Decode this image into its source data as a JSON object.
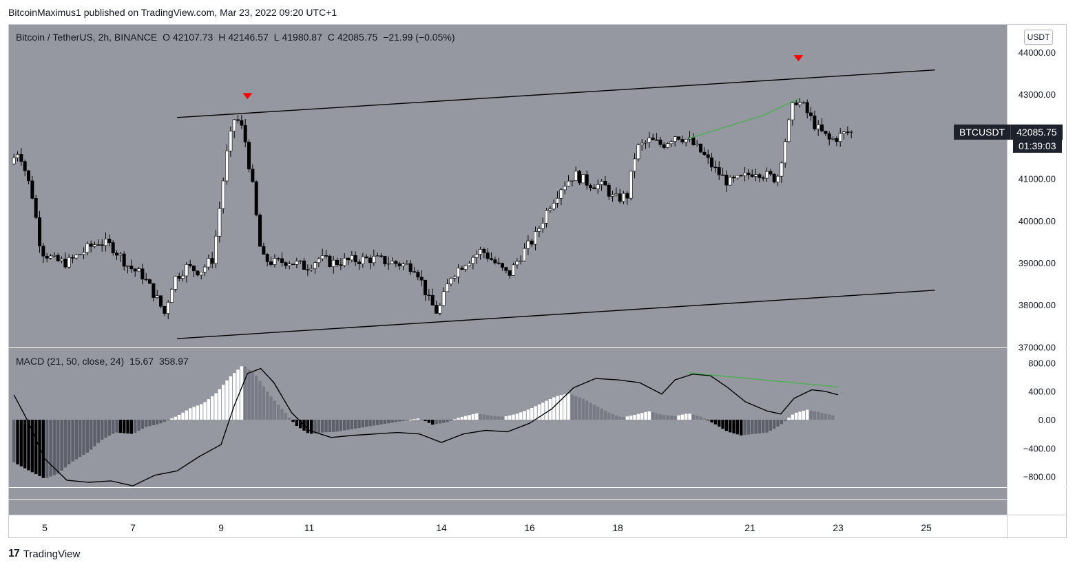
{
  "publisher": "BitcoinMaximus1 published on TradingView.com, Mar 23, 2022 09:20 UTC+1",
  "footer_brand": "TradingView",
  "legend": {
    "symbol": "Bitcoin / TetherUS, 2h, BINANCE",
    "o_label": "O",
    "o_value": "42107.73",
    "h_label": "H",
    "h_value": "42146.57",
    "l_label": "L",
    "l_value": "41980.87",
    "c_label": "C",
    "c_value": "42085.75",
    "change": "−21.99 (−0.05%)"
  },
  "macd_legend": {
    "label": "MACD (21, 50, close, 24)",
    "v1": "15.67",
    "v2": "358.97"
  },
  "currency_unit": "USDT",
  "price_tag": {
    "symbol": "BTCUSDT",
    "price": "42085.75",
    "countdown": "01:39:03"
  },
  "colors": {
    "panel_bg": "#9598a1",
    "bull_candle": "#ffffff",
    "bear_candle": "#000000",
    "divergence_line": "#4caf50",
    "top_marker": "#ff0000",
    "channel_line": "#000000"
  },
  "chart_data": [
    {
      "type": "candlestick",
      "title": "Bitcoin / TetherUS, 2h, BINANCE",
      "y_axis": {
        "ticks": [
          "44000.00",
          "43000.00",
          "42000.00",
          "41000.00",
          "40000.00",
          "39000.00",
          "38000.00",
          "37000.00"
        ],
        "ylim": [
          37000,
          44500
        ]
      },
      "x_axis": {
        "ticks": [
          "5",
          "7",
          "9",
          "11",
          "14",
          "16",
          "18",
          "21",
          "23",
          "25"
        ]
      },
      "price_path": [
        [
          4.3,
          41350
        ],
        [
          4.5,
          41700
        ],
        [
          4.8,
          40600
        ],
        [
          5.0,
          39300
        ],
        [
          5.3,
          39050
        ],
        [
          5.6,
          39000
        ],
        [
          6.0,
          39300
        ],
        [
          6.3,
          39500
        ],
        [
          6.6,
          39400
        ],
        [
          7.0,
          38900
        ],
        [
          7.3,
          38700
        ],
        [
          7.6,
          38200
        ],
        [
          7.8,
          37800
        ],
        [
          8.0,
          38600
        ],
        [
          8.3,
          38900
        ],
        [
          8.6,
          38800
        ],
        [
          8.9,
          39100
        ],
        [
          9.2,
          41500
        ],
        [
          9.4,
          42500
        ],
        [
          9.6,
          42100
        ],
        [
          9.8,
          40800
        ],
        [
          10.0,
          39100
        ],
        [
          10.3,
          39000
        ],
        [
          10.6,
          39050
        ],
        [
          11.0,
          38900
        ],
        [
          11.3,
          39100
        ],
        [
          11.6,
          39000
        ],
        [
          12.0,
          39050
        ],
        [
          12.5,
          39100
        ],
        [
          13.0,
          39000
        ],
        [
          13.5,
          38900
        ],
        [
          13.8,
          38100
        ],
        [
          14.0,
          37800
        ],
        [
          14.3,
          38700
        ],
        [
          14.6,
          39000
        ],
        [
          15.0,
          39300
        ],
        [
          15.3,
          39000
        ],
        [
          15.6,
          38700
        ],
        [
          15.9,
          39200
        ],
        [
          16.2,
          39600
        ],
        [
          16.5,
          40300
        ],
        [
          16.8,
          40800
        ],
        [
          17.1,
          41100
        ],
        [
          17.4,
          40900
        ],
        [
          17.8,
          40800
        ],
        [
          18.0,
          40500
        ],
        [
          18.3,
          40600
        ],
        [
          18.5,
          41700
        ],
        [
          18.8,
          41900
        ],
        [
          19.1,
          41800
        ],
        [
          19.4,
          42050
        ],
        [
          19.7,
          41900
        ],
        [
          20.0,
          41600
        ],
        [
          20.3,
          41200
        ],
        [
          20.6,
          40900
        ],
        [
          20.9,
          41000
        ],
        [
          21.2,
          41200
        ],
        [
          21.5,
          41050
        ],
        [
          21.7,
          41000
        ],
        [
          21.9,
          42000
        ],
        [
          22.1,
          42900
        ],
        [
          22.3,
          42700
        ],
        [
          22.6,
          42200
        ],
        [
          22.9,
          41900
        ],
        [
          23.3,
          42100
        ]
      ],
      "annotations": {
        "channel_upper": [
          [
            8.0,
            42450
          ],
          [
            25.2,
            43580
          ]
        ],
        "channel_lower": [
          [
            8.0,
            37200
          ],
          [
            25.2,
            38350
          ]
        ],
        "price_divergence_line": [
          [
            19.6,
            41950
          ],
          [
            21.3,
            42500
          ],
          [
            22.1,
            42900
          ]
        ],
        "top_markers_x": [
          9.6,
          22.1
        ],
        "top_markers_y": [
          42950,
          43850
        ]
      }
    },
    {
      "type": "line",
      "title": "MACD (21, 50, close, 24)",
      "y_axis": {
        "ticks": [
          "800.00",
          "400.00",
          "0.00",
          "−400.00",
          "−800.00"
        ],
        "ylim": [
          -950,
          1000
        ]
      },
      "macd_line": [
        [
          4.3,
          350
        ],
        [
          4.6,
          0
        ],
        [
          5.0,
          -550
        ],
        [
          5.5,
          -850
        ],
        [
          6.0,
          -880
        ],
        [
          6.5,
          -860
        ],
        [
          7.0,
          -930
        ],
        [
          7.5,
          -780
        ],
        [
          8.0,
          -720
        ],
        [
          8.5,
          -520
        ],
        [
          9.0,
          -350
        ],
        [
          9.3,
          200
        ],
        [
          9.6,
          650
        ],
        [
          9.9,
          720
        ],
        [
          10.2,
          520
        ],
        [
          10.6,
          100
        ],
        [
          11.0,
          -150
        ],
        [
          11.5,
          -250
        ],
        [
          12.0,
          -220
        ],
        [
          12.5,
          -200
        ],
        [
          13.0,
          -180
        ],
        [
          13.5,
          -200
        ],
        [
          14.0,
          -320
        ],
        [
          14.5,
          -200
        ],
        [
          15.0,
          -150
        ],
        [
          15.5,
          -170
        ],
        [
          16.0,
          -50
        ],
        [
          16.5,
          150
        ],
        [
          17.0,
          450
        ],
        [
          17.5,
          580
        ],
        [
          18.0,
          560
        ],
        [
          18.5,
          520
        ],
        [
          19.0,
          360
        ],
        [
          19.3,
          560
        ],
        [
          19.7,
          640
        ],
        [
          20.1,
          620
        ],
        [
          20.5,
          450
        ],
        [
          20.9,
          250
        ],
        [
          21.4,
          120
        ],
        [
          21.7,
          80
        ],
        [
          22.0,
          300
        ],
        [
          22.4,
          420
        ],
        [
          22.7,
          400
        ],
        [
          23.0,
          350
        ]
      ],
      "histogram": [
        [
          4.3,
          -600
        ],
        [
          4.6,
          -700
        ],
        [
          5.0,
          -830
        ],
        [
          5.3,
          -760
        ],
        [
          5.6,
          -600
        ],
        [
          6.0,
          -450
        ],
        [
          6.3,
          -280
        ],
        [
          6.6,
          -180
        ],
        [
          7.0,
          -200
        ],
        [
          7.3,
          -100
        ],
        [
          7.6,
          -60
        ],
        [
          8.0,
          50
        ],
        [
          8.3,
          160
        ],
        [
          8.6,
          230
        ],
        [
          8.9,
          380
        ],
        [
          9.2,
          600
        ],
        [
          9.5,
          770
        ],
        [
          9.8,
          620
        ],
        [
          10.1,
          350
        ],
        [
          10.4,
          140
        ],
        [
          10.7,
          -80
        ],
        [
          11.0,
          -200
        ],
        [
          11.3,
          -180
        ],
        [
          11.6,
          -170
        ],
        [
          12.0,
          -130
        ],
        [
          12.5,
          -80
        ],
        [
          13.0,
          -30
        ],
        [
          13.5,
          20
        ],
        [
          13.8,
          -70
        ],
        [
          14.1,
          -40
        ],
        [
          14.4,
          30
        ],
        [
          14.8,
          90
        ],
        [
          15.1,
          60
        ],
        [
          15.4,
          40
        ],
        [
          15.7,
          80
        ],
        [
          16.0,
          150
        ],
        [
          16.3,
          240
        ],
        [
          16.6,
          330
        ],
        [
          16.9,
          370
        ],
        [
          17.2,
          300
        ],
        [
          17.5,
          200
        ],
        [
          17.8,
          100
        ],
        [
          18.1,
          30
        ],
        [
          18.4,
          70
        ],
        [
          18.7,
          120
        ],
        [
          19.0,
          70
        ],
        [
          19.3,
          50
        ],
        [
          19.6,
          90
        ],
        [
          19.9,
          40
        ],
        [
          20.2,
          -60
        ],
        [
          20.5,
          -170
        ],
        [
          20.8,
          -220
        ],
        [
          21.1,
          -200
        ],
        [
          21.4,
          -180
        ],
        [
          21.7,
          -70
        ],
        [
          22.0,
          90
        ],
        [
          22.3,
          140
        ],
        [
          22.6,
          100
        ],
        [
          22.9,
          60
        ]
      ],
      "annotations": {
        "macd_divergence_line": [
          [
            19.6,
            660
          ],
          [
            23.0,
            460
          ]
        ]
      }
    }
  ]
}
